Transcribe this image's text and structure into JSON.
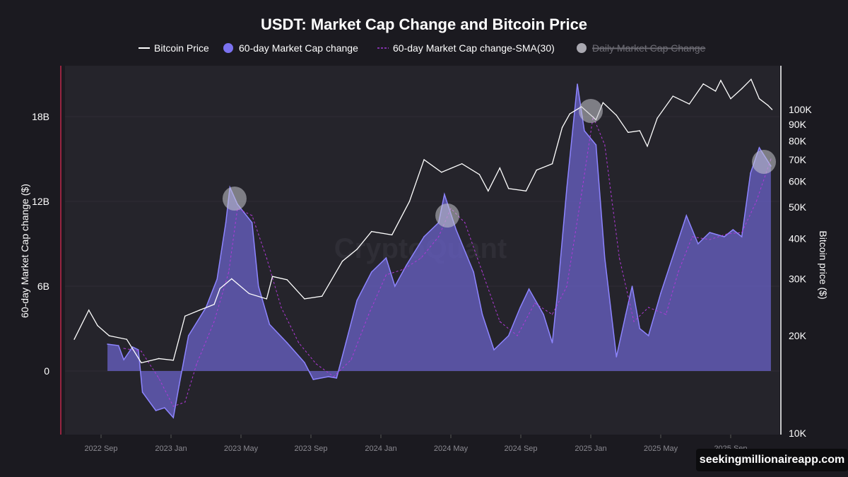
{
  "chart_data": {
    "type": "area",
    "title": "USDT: Market Cap Change and Bitcoin Price",
    "legend": {
      "placement": "top",
      "items": [
        {
          "label": "Bitcoin Price",
          "color": "#ffffff",
          "marker": "line",
          "hidden": false
        },
        {
          "label": "60-day Market Cap change",
          "color": "#7b72f0",
          "marker": "circle",
          "hidden": false
        },
        {
          "label": "60-day Market Cap change-SMA(30)",
          "color": "#a23bd6",
          "marker": "dashed-line",
          "hidden": false
        },
        {
          "label": "Daily Market Cap Change",
          "color": "#a9a8b0",
          "marker": "circle",
          "hidden": true
        }
      ]
    },
    "ylabel": "60-day Market Cap change ($)",
    "y2label": "Bitcoin price ($)",
    "ylim": [
      -4.5,
      21.6
    ],
    "y_ticks": [
      {
        "v": 18,
        "label": "18B"
      },
      {
        "v": 12,
        "label": "12B"
      },
      {
        "v": 6,
        "label": "6B"
      },
      {
        "v": 0,
        "label": "0"
      }
    ],
    "y2_scale": "log",
    "y2lim": [
      10000,
      118000
    ],
    "y2_ticks": [
      {
        "v": 100000,
        "label": "100K"
      },
      {
        "v": 90000,
        "label": "90K"
      },
      {
        "v": 80000,
        "label": "80K"
      },
      {
        "v": 70000,
        "label": "70K"
      },
      {
        "v": 60000,
        "label": "60K"
      },
      {
        "v": 50000,
        "label": "50K"
      },
      {
        "v": 40000,
        "label": "40K"
      },
      {
        "v": 30000,
        "label": "30K"
      },
      {
        "v": 20000,
        "label": "20K"
      },
      {
        "v": 10000,
        "label": "10K"
      }
    ],
    "x_ticks": [
      {
        "d": "2022-09",
        "label": "2022 Sep"
      },
      {
        "d": "2023-01",
        "label": "2023 Jan"
      },
      {
        "d": "2023-05",
        "label": "2023 May"
      },
      {
        "d": "2023-09",
        "label": "2023 Sep"
      },
      {
        "d": "2024-01",
        "label": "2024 Jan"
      },
      {
        "d": "2024-05",
        "label": "2024 May"
      },
      {
        "d": "2024-09",
        "label": "2024 Sep"
      },
      {
        "d": "2025-01",
        "label": "2025 Jan"
      },
      {
        "d": "2025-05",
        "label": "2025 May"
      },
      {
        "d": "2025-09",
        "label": "2025 Sep"
      }
    ],
    "grid": true,
    "series": [
      {
        "name": "Bitcoin Price",
        "axis": "right",
        "points": [
          [
            "2022-07-15",
            19500
          ],
          [
            "2022-08-10",
            24000
          ],
          [
            "2022-08-25",
            21500
          ],
          [
            "2022-09-15",
            20000
          ],
          [
            "2022-10-15",
            19500
          ],
          [
            "2022-11-10",
            16500
          ],
          [
            "2022-12-10",
            17000
          ],
          [
            "2023-01-05",
            16800
          ],
          [
            "2023-01-25",
            23000
          ],
          [
            "2023-02-20",
            24000
          ],
          [
            "2023-03-15",
            25000
          ],
          [
            "2023-03-25",
            28000
          ],
          [
            "2023-04-15",
            30000
          ],
          [
            "2023-05-15",
            27000
          ],
          [
            "2023-06-15",
            26000
          ],
          [
            "2023-06-25",
            30500
          ],
          [
            "2023-07-20",
            29800
          ],
          [
            "2023-08-20",
            26000
          ],
          [
            "2023-09-20",
            26500
          ],
          [
            "2023-10-25",
            34000
          ],
          [
            "2023-11-20",
            37000
          ],
          [
            "2023-12-15",
            42000
          ],
          [
            "2024-01-20",
            41000
          ],
          [
            "2024-02-20",
            52000
          ],
          [
            "2024-03-15",
            70000
          ],
          [
            "2024-04-15",
            64000
          ],
          [
            "2024-05-20",
            68000
          ],
          [
            "2024-06-20",
            63000
          ],
          [
            "2024-07-05",
            56000
          ],
          [
            "2024-07-25",
            66000
          ],
          [
            "2024-08-10",
            57000
          ],
          [
            "2024-09-10",
            56000
          ],
          [
            "2024-09-28",
            65000
          ],
          [
            "2024-10-25",
            68000
          ],
          [
            "2024-11-12",
            88000
          ],
          [
            "2024-11-25",
            97000
          ],
          [
            "2024-12-15",
            102000
          ],
          [
            "2025-01-10",
            93000
          ],
          [
            "2025-01-22",
            105000
          ],
          [
            "2025-02-15",
            96000
          ],
          [
            "2025-03-05",
            85000
          ],
          [
            "2025-03-25",
            86000
          ],
          [
            "2025-04-08",
            77000
          ],
          [
            "2025-04-25",
            94000
          ],
          [
            "2025-05-22",
            110000
          ],
          [
            "2025-06-20",
            104000
          ],
          [
            "2025-07-14",
            120000
          ],
          [
            "2025-08-05",
            114000
          ],
          [
            "2025-08-14",
            123000
          ],
          [
            "2025-09-01",
            108000
          ],
          [
            "2025-09-20",
            116000
          ],
          [
            "2025-10-06",
            124000
          ],
          [
            "2025-10-20",
            108000
          ],
          [
            "2025-11-05",
            103000
          ],
          [
            "2025-11-12",
            100000
          ]
        ]
      },
      {
        "name": "60-day Market Cap change",
        "axis": "left",
        "points": [
          [
            "2022-09-12",
            1.9
          ],
          [
            "2022-10-01",
            1.8
          ],
          [
            "2022-10-10",
            0.8
          ],
          [
            "2022-10-25",
            1.7
          ],
          [
            "2022-11-05",
            1.5
          ],
          [
            "2022-11-12",
            -1.5
          ],
          [
            "2022-12-05",
            -2.8
          ],
          [
            "2022-12-20",
            -2.6
          ],
          [
            "2023-01-05",
            -3.3
          ],
          [
            "2023-01-15",
            -1.0
          ],
          [
            "2023-02-01",
            2.5
          ],
          [
            "2023-03-01",
            4.5
          ],
          [
            "2023-03-20",
            6.5
          ],
          [
            "2023-04-05",
            10.5
          ],
          [
            "2023-04-12",
            13.0
          ],
          [
            "2023-04-25",
            11.8
          ],
          [
            "2023-05-20",
            10.5
          ],
          [
            "2023-06-01",
            6.0
          ],
          [
            "2023-06-20",
            3.3
          ],
          [
            "2023-07-20",
            2.0
          ],
          [
            "2023-08-20",
            0.6
          ],
          [
            "2023-09-05",
            -0.6
          ],
          [
            "2023-10-01",
            -0.4
          ],
          [
            "2023-10-15",
            -0.5
          ],
          [
            "2023-11-01",
            2.0
          ],
          [
            "2023-11-20",
            5.0
          ],
          [
            "2023-12-15",
            7.0
          ],
          [
            "2024-01-10",
            8.0
          ],
          [
            "2024-01-25",
            6.0
          ],
          [
            "2024-02-15",
            7.5
          ],
          [
            "2024-03-15",
            9.5
          ],
          [
            "2024-04-10",
            10.5
          ],
          [
            "2024-04-20",
            12.5
          ],
          [
            "2024-05-10",
            10.0
          ],
          [
            "2024-06-10",
            7.0
          ],
          [
            "2024-06-25",
            4.0
          ],
          [
            "2024-07-15",
            1.5
          ],
          [
            "2024-08-10",
            2.5
          ],
          [
            "2024-08-30",
            4.5
          ],
          [
            "2024-09-15",
            5.8
          ],
          [
            "2024-10-10",
            4.0
          ],
          [
            "2024-10-25",
            2.0
          ],
          [
            "2024-11-05",
            6.0
          ],
          [
            "2024-11-20",
            13.0
          ],
          [
            "2024-12-08",
            20.3
          ],
          [
            "2024-12-20",
            17.0
          ],
          [
            "2025-01-10",
            16.0
          ],
          [
            "2025-01-25",
            8.0
          ],
          [
            "2025-02-15",
            1.0
          ],
          [
            "2025-03-01",
            4.0
          ],
          [
            "2025-03-12",
            6.0
          ],
          [
            "2025-03-25",
            3.0
          ],
          [
            "2025-04-10",
            2.5
          ],
          [
            "2025-05-01",
            5.5
          ],
          [
            "2025-05-25",
            8.5
          ],
          [
            "2025-06-15",
            11.0
          ],
          [
            "2025-07-05",
            9.0
          ],
          [
            "2025-07-25",
            9.8
          ],
          [
            "2025-08-20",
            9.5
          ],
          [
            "2025-09-05",
            10.0
          ],
          [
            "2025-09-20",
            9.5
          ],
          [
            "2025-10-05",
            14.0
          ],
          [
            "2025-10-20",
            15.8
          ],
          [
            "2025-11-10",
            14.5
          ]
        ]
      },
      {
        "name": "60-day Market Cap change-SMA(30)",
        "axis": "left",
        "points": [
          [
            "2022-10-10",
            1.6
          ],
          [
            "2022-11-10",
            1.4
          ],
          [
            "2022-12-10",
            -0.5
          ],
          [
            "2023-01-05",
            -2.5
          ],
          [
            "2023-01-25",
            -2.2
          ],
          [
            "2023-02-15",
            0.5
          ],
          [
            "2023-03-15",
            3.5
          ],
          [
            "2023-04-10",
            7.0
          ],
          [
            "2023-04-25",
            11.5
          ],
          [
            "2023-05-20",
            11.0
          ],
          [
            "2023-06-15",
            8.0
          ],
          [
            "2023-07-10",
            4.5
          ],
          [
            "2023-08-10",
            2.0
          ],
          [
            "2023-09-10",
            0.5
          ],
          [
            "2023-10-10",
            -0.4
          ],
          [
            "2023-11-10",
            0.8
          ],
          [
            "2023-12-10",
            4.0
          ],
          [
            "2024-01-10",
            6.8
          ],
          [
            "2024-02-10",
            7.2
          ],
          [
            "2024-03-10",
            8.0
          ],
          [
            "2024-04-10",
            9.5
          ],
          [
            "2024-05-01",
            11.5
          ],
          [
            "2024-05-25",
            10.5
          ],
          [
            "2024-06-25",
            7.0
          ],
          [
            "2024-07-25",
            3.5
          ],
          [
            "2024-08-25",
            2.5
          ],
          [
            "2024-09-25",
            4.8
          ],
          [
            "2024-10-25",
            4.0
          ],
          [
            "2024-11-20",
            6.0
          ],
          [
            "2024-12-15",
            12.5
          ],
          [
            "2025-01-05",
            18.0
          ],
          [
            "2025-01-25",
            16.0
          ],
          [
            "2025-02-20",
            8.0
          ],
          [
            "2025-03-15",
            3.5
          ],
          [
            "2025-04-10",
            4.5
          ],
          [
            "2025-05-10",
            4.0
          ],
          [
            "2025-06-01",
            7.0
          ],
          [
            "2025-06-25",
            9.5
          ],
          [
            "2025-07-25",
            9.3
          ],
          [
            "2025-08-25",
            9.7
          ],
          [
            "2025-09-20",
            9.8
          ],
          [
            "2025-10-15",
            12.0
          ],
          [
            "2025-11-10",
            15.0
          ]
        ]
      }
    ],
    "highlights": [
      {
        "date": "2023-04-20",
        "value": 12.2
      },
      {
        "date": "2024-04-25",
        "value": 11.0
      },
      {
        "date": "2025-01-01",
        "value": 18.4
      },
      {
        "date": "2025-10-28",
        "value": 14.8
      }
    ],
    "watermark": "CryptoQuant"
  },
  "credit": "seekingmillionaireapp.com"
}
